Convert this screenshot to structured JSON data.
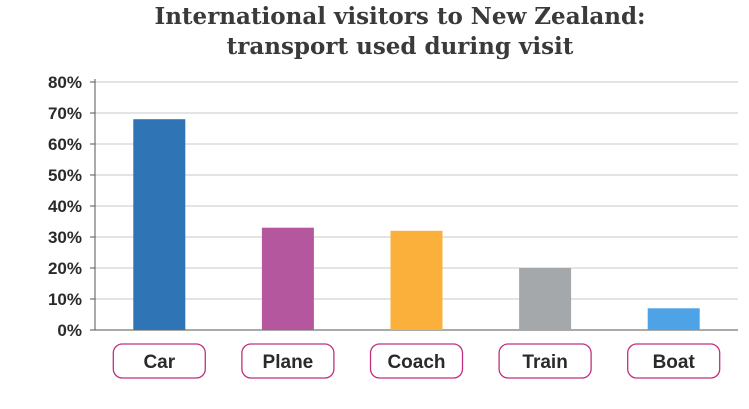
{
  "chart_data": {
    "type": "bar",
    "title_lines": [
      "International visitors to New Zealand:",
      "transport used during visit"
    ],
    "categories": [
      "Car",
      "Plane",
      "Coach",
      "Train",
      "Boat"
    ],
    "values": [
      68,
      33,
      32,
      20,
      7
    ],
    "colors": [
      "#2f74b5",
      "#b5579e",
      "#fbb03b",
      "#a5a8aa",
      "#4ea3e6"
    ],
    "ylim": [
      0,
      80
    ],
    "yticks": [
      0,
      10,
      20,
      30,
      40,
      50,
      60,
      70,
      80
    ],
    "ytick_labels": [
      "0%",
      "10%",
      "20%",
      "30%",
      "40%",
      "50%",
      "60%",
      "70%",
      "80%"
    ],
    "grid": true,
    "xlabel": "",
    "ylabel": "",
    "label_box_color": "#c0307e"
  }
}
